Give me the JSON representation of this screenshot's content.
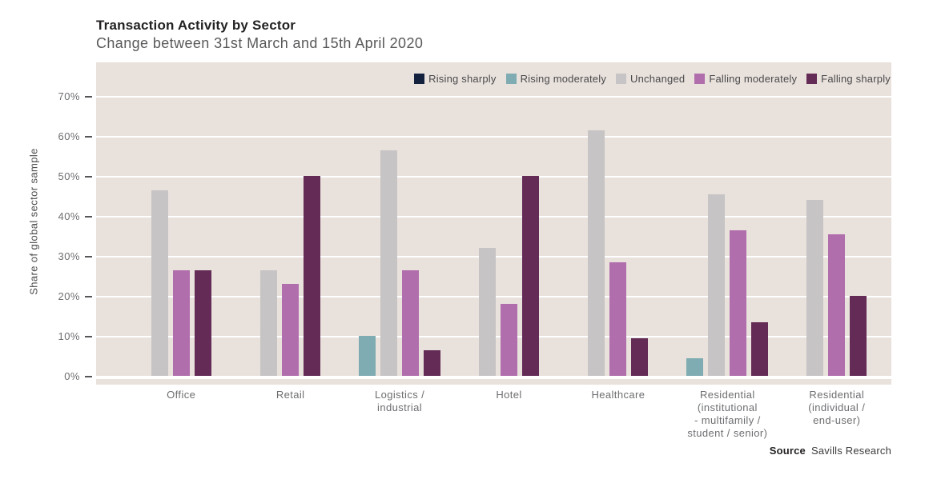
{
  "header": {
    "title": "Transaction Activity by Sector",
    "subtitle": "Change between 31st March and 15th April 2020"
  },
  "legend": [
    {
      "key": "rising-sharply",
      "label": "Rising sharply",
      "color": "#13203e"
    },
    {
      "key": "rising-moderately",
      "label": "Rising moderately",
      "color": "#7eacb2"
    },
    {
      "key": "unchanged",
      "label": "Unchanged",
      "color": "#c6c4c4"
    },
    {
      "key": "falling-moderately",
      "label": "Falling moderately",
      "color": "#b06eac"
    },
    {
      "key": "falling-sharply",
      "label": "Falling sharply",
      "color": "#632b55"
    }
  ],
  "chart_data": {
    "type": "bar",
    "title": "Transaction Activity by Sector",
    "subtitle": "Change between 31st March and 15th April 2020",
    "ylabel": "Share of global sector sample",
    "xlabel": "",
    "ylim": [
      0,
      70
    ],
    "ytick_step": 10,
    "ytick_labels": [
      "0%",
      "10%",
      "20%",
      "30%",
      "40%",
      "50%",
      "60%",
      "70%"
    ],
    "grid": true,
    "legend_position": "top-right",
    "categories": [
      "Office",
      "Retail",
      "Logistics / industrial",
      "Hotel",
      "Healthcare",
      "Residential (institutional - multifamily / student / senior)",
      "Residential (individual / end-user)"
    ],
    "category_label_lines": [
      [
        "Office"
      ],
      [
        "Retail"
      ],
      [
        "Logistics /",
        "industrial"
      ],
      [
        "Hotel"
      ],
      [
        "Healthcare"
      ],
      [
        "Residential",
        "(institutional",
        "- multifamily /",
        "student / senior)"
      ],
      [
        "Residential",
        "(individual /",
        "end-user)"
      ]
    ],
    "series": [
      {
        "name": "Rising sharply",
        "color": "#13203e",
        "values": [
          0,
          0,
          0,
          0,
          0,
          0,
          0
        ]
      },
      {
        "name": "Rising moderately",
        "color": "#7eacb2",
        "values": [
          0,
          0,
          10,
          0,
          0,
          4.5,
          0
        ]
      },
      {
        "name": "Unchanged",
        "color": "#c6c4c4",
        "values": [
          46.5,
          26.5,
          56.5,
          32,
          61.5,
          45.5,
          44
        ]
      },
      {
        "name": "Falling moderately",
        "color": "#b06eac",
        "values": [
          26.5,
          23,
          26.5,
          18,
          28.5,
          36.5,
          35.5
        ]
      },
      {
        "name": "Falling sharply",
        "color": "#632b55",
        "values": [
          26.5,
          50,
          6.5,
          50,
          9.5,
          13.5,
          20
        ]
      }
    ]
  },
  "source": {
    "label": "Source",
    "text": "Savills Research"
  },
  "colors": {
    "plot_bg": "#e9e1dc",
    "grid": "#ffffff",
    "axis_text": "#6d6e71",
    "title": "#232122",
    "subtitle": "#58595b"
  }
}
